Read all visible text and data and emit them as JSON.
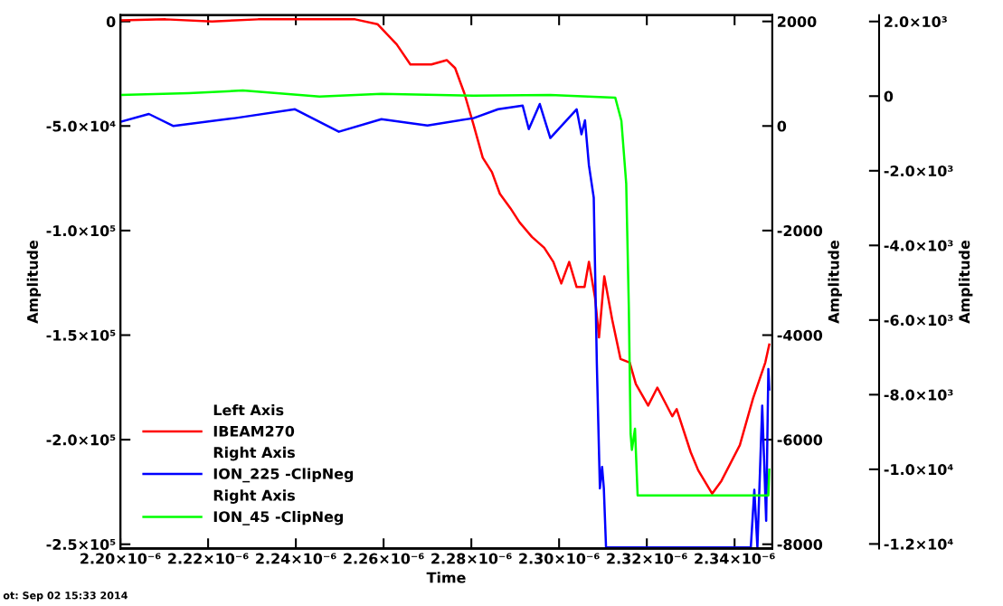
{
  "chart_data": {
    "type": "line",
    "xlabel": "Time",
    "ylabel": "Amplitude",
    "y2label": "Amplitude",
    "y3label": "Amplitude",
    "annotations": [
      "Left Axis",
      "Right Axis",
      "Right Axis",
      "ot: Sep 02 15:33 2014"
    ],
    "xlim": [
      2.2e-06,
      2.3486e-06
    ],
    "xticks": [
      {
        "value": 2.2e-06,
        "label": "2.20×10⁻⁶"
      },
      {
        "value": 2.22e-06,
        "label": "2.22×10⁻⁶"
      },
      {
        "value": 2.24e-06,
        "label": "2.24×10⁻⁶"
      },
      {
        "value": 2.26e-06,
        "label": "2.26×10⁻⁶"
      },
      {
        "value": 2.28e-06,
        "label": "2.28×10⁻⁶"
      },
      {
        "value": 2.3e-06,
        "label": "2.30×10⁻⁶"
      },
      {
        "value": 2.32e-06,
        "label": "2.32×10⁻⁶"
      },
      {
        "value": 2.34e-06,
        "label": "2.34×10⁻⁶"
      }
    ],
    "ylim": [
      -252000,
      3000
    ],
    "yticks": [
      0,
      {
        "value": -50000,
        "label": "-5.0×10⁴"
      },
      {
        "value": -100000,
        "label": "-1.0×10⁵"
      },
      {
        "value": -150000,
        "label": "-1.5×10⁵"
      },
      {
        "value": -200000,
        "label": "-2.0×10⁵"
      },
      {
        "value": -250000,
        "label": "-2.5×10⁵"
      }
    ],
    "y2lim": [
      -8080,
      2120
    ],
    "y2ticks": [
      2000,
      0,
      -2000,
      -4000,
      -6000,
      -8000
    ],
    "y3lim": [
      -12120,
      2170
    ],
    "y3ticks": [
      {
        "value": 2000,
        "label": "2.0×10³"
      },
      0,
      {
        "value": -2000,
        "label": "-2.0×10³"
      },
      {
        "value": -4000,
        "label": "-4.0×10³"
      },
      {
        "value": -6000,
        "label": "-6.0×10³"
      },
      {
        "value": -8000,
        "label": "-8.0×10³"
      },
      {
        "value": -10000,
        "label": "-1.0×10⁴"
      },
      {
        "value": -12000,
        "label": "-1.2×10⁴"
      }
    ],
    "legend": "lower left",
    "grid": false,
    "marker": "none",
    "line_style": "solid",
    "series": [
      {
        "name": "IBEAM270",
        "color": "#ff0000",
        "x": [
          2.2e-06,
          2.2103e-06,
          2.2209e-06,
          2.2314e-06,
          2.2419e-06,
          2.2535e-06,
          2.2586e-06,
          2.263e-06,
          2.2661e-06,
          2.2709e-06,
          2.2744e-06,
          2.2763e-06,
          2.2784e-06,
          2.2805e-06,
          2.2826e-06,
          2.2847e-06,
          2.2865e-06,
          2.2889e-06,
          2.291e-06,
          2.2938e-06,
          2.2966e-06,
          2.2987e-06,
          2.3005e-06,
          2.3023e-06,
          2.304e-06,
          2.3058e-06,
          2.3068e-06,
          2.3082e-06,
          2.3091e-06,
          2.3103e-06,
          2.3121e-06,
          2.314e-06,
          2.3161e-06,
          2.3175e-06,
          2.3203e-06,
          2.3224e-06,
          2.3258e-06,
          2.3268e-06,
          2.33e-06,
          2.3317e-06,
          2.3349e-06,
          2.337e-06,
          2.3412e-06,
          2.3442e-06,
          2.347e-06,
          2.3479e-06
        ],
        "values": [
          500,
          1000,
          0,
          1000,
          1000,
          1000,
          -1300,
          -11000,
          -20600,
          -20600,
          -18500,
          -22300,
          -34300,
          -49400,
          -65200,
          -72100,
          -82400,
          -89300,
          -96100,
          -103000,
          -108200,
          -115000,
          -125300,
          -115000,
          -127000,
          -127000,
          -115000,
          -132200,
          -151100,
          -121900,
          -142500,
          -161400,
          -163100,
          -173400,
          -183700,
          -175100,
          -188800,
          -185400,
          -206000,
          -214600,
          -225800,
          -219700,
          -202600,
          -180300,
          -163100,
          -154500
        ]
      },
      {
        "name": "ION_225 -ClipNeg",
        "color": "#0000ff",
        "axis": "y2",
        "x": [
          2.2e-06,
          2.2065e-06,
          2.2121e-06,
          2.2261e-06,
          2.2398e-06,
          2.2498e-06,
          2.2595e-06,
          2.27e-06,
          2.2805e-06,
          2.2861e-06,
          2.2917e-06,
          2.2931e-06,
          2.2956e-06,
          2.298e-06,
          2.304e-06,
          2.3051e-06,
          2.3059e-06,
          2.3068e-06,
          2.3079e-06,
          2.3086e-06,
          2.3093e-06,
          2.3098e-06,
          2.3102e-06,
          2.3107e-06,
          2.3437e-06,
          2.3445e-06,
          2.3452e-06,
          2.3463e-06,
          2.3472e-06,
          2.3477e-06,
          2.3479e-06
        ],
        "values": [
          80,
          230,
          0,
          150,
          320,
          -110,
          130,
          10,
          150,
          320,
          390,
          -60,
          420,
          -230,
          320,
          -160,
          110,
          -750,
          -1370,
          -4530,
          -6930,
          -6520,
          -6930,
          -8060,
          -8060,
          -6960,
          -8060,
          -5350,
          -7550,
          -4650,
          -5040
        ]
      },
      {
        "name": "ION_45 -ClipNeg",
        "color": "#00ff00",
        "axis": "y3",
        "x": [
          2.2e-06,
          2.2156e-06,
          2.2279e-06,
          2.2454e-06,
          2.2595e-06,
          2.2805e-06,
          2.298e-06,
          2.3128e-06,
          2.3142e-06,
          2.3153e-06,
          2.3159e-06,
          2.3163e-06,
          2.3166e-06,
          2.3173e-06,
          2.3179e-06,
          2.3477e-06,
          2.3479e-06
        ],
        "values": [
          30,
          80,
          150,
          -10,
          60,
          10,
          30,
          -40,
          -660,
          -2340,
          -5690,
          -9050,
          -9480,
          -8910,
          -10700,
          -10700,
          -10010
        ]
      }
    ]
  }
}
